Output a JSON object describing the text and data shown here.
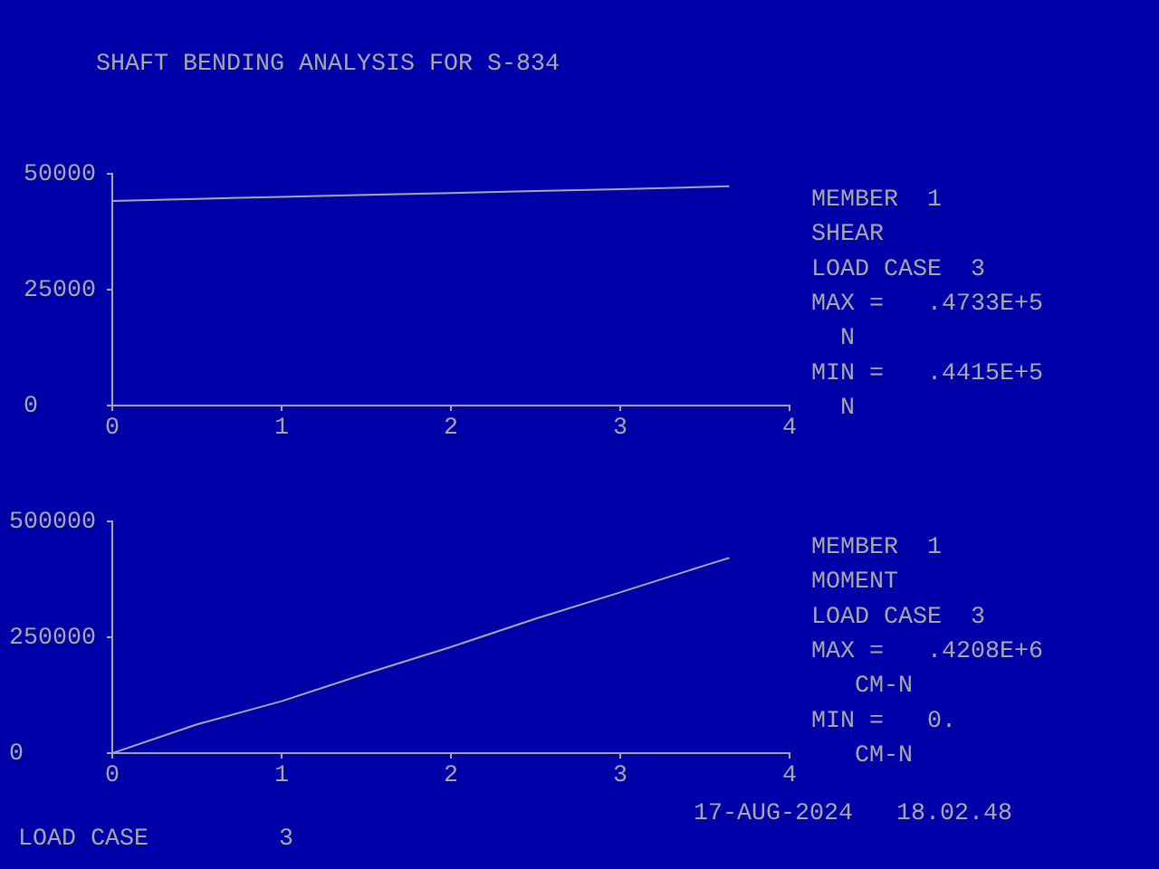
{
  "chart_data": [
    {
      "type": "line",
      "title": "SHAFT BENDING ANALYSIS FOR S-834",
      "x": [
        0,
        0.5,
        1,
        1.5,
        2,
        2.5,
        3,
        3.5,
        3.64
      ],
      "values": [
        44150,
        44600,
        45000,
        45450,
        45850,
        46300,
        46700,
        47150,
        47330
      ],
      "color": "#a8a8a8",
      "xlim": [
        0,
        4
      ],
      "xticks": [
        0,
        1,
        2,
        3,
        4
      ],
      "ylim": [
        0,
        50000
      ],
      "yticks": [
        0,
        25000,
        50000
      ],
      "grid": false,
      "legend": false,
      "marker": "none",
      "annotations": [
        "MEMBER  1",
        "SHEAR",
        "LOAD CASE  3",
        "MAX =   .4733E+5",
        "  N",
        "MIN =   .4415E+5",
        "  N"
      ]
    },
    {
      "type": "line",
      "x": [
        0,
        0.5,
        1,
        1.5,
        2,
        2.5,
        3,
        3.5,
        3.64
      ],
      "values": [
        0,
        62000,
        112000,
        172000,
        229000,
        290000,
        347000,
        405000,
        420800
      ],
      "color": "#a8a8a8",
      "xlim": [
        0,
        4
      ],
      "xticks": [
        0,
        1,
        2,
        3,
        4
      ],
      "ylim": [
        0,
        500000
      ],
      "yticks": [
        0,
        250000,
        500000
      ],
      "grid": false,
      "legend": false,
      "marker": "none",
      "annotations": [
        "MEMBER  1",
        "MOMENT",
        "LOAD CASE  3",
        "MAX =   .4208E+6",
        "   CM-N",
        "MIN =   0.",
        "   CM-N",
        "17-AUG-2024   18.02.48",
        "LOAD CASE         3"
      ]
    }
  ]
}
